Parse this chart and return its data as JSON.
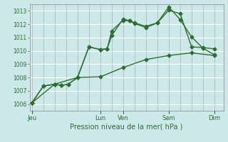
{
  "xlabel": "Pression niveau de la mer( hPa )",
  "bg_color": "#cce8e8",
  "plot_bg_color": "#cce8e8",
  "grid_color_v": "#d4a0a0",
  "grid_color_h": "#ffffff",
  "line_color": "#2d6e2d",
  "ylim": [
    1005.5,
    1013.5
  ],
  "yticks": [
    1006,
    1007,
    1008,
    1009,
    1010,
    1011,
    1012,
    1013
  ],
  "day_labels": [
    "Jeu",
    "Lun",
    "Ven",
    "Sam",
    "Dim"
  ],
  "day_positions": [
    0,
    3.0,
    4.0,
    6.0,
    8.0
  ],
  "xlim": [
    -0.1,
    8.4
  ],
  "line1_x": [
    0,
    0.5,
    1.0,
    1.3,
    1.6,
    2.0,
    2.5,
    3.0,
    3.3,
    3.5,
    4.0,
    4.3,
    4.5,
    5.0,
    5.5,
    6.0,
    6.5,
    7.0,
    7.5,
    8.0
  ],
  "line1_y": [
    1006.1,
    1007.35,
    1007.5,
    1007.4,
    1007.5,
    1008.0,
    1010.3,
    1010.1,
    1010.15,
    1011.5,
    1012.3,
    1012.25,
    1012.1,
    1011.85,
    1012.1,
    1013.05,
    1012.8,
    1010.3,
    1010.25,
    1010.15
  ],
  "line2_x": [
    0,
    0.5,
    1.0,
    1.3,
    1.6,
    2.0,
    2.5,
    3.0,
    3.3,
    3.5,
    4.0,
    4.3,
    4.5,
    5.0,
    5.5,
    6.0,
    6.5,
    7.0,
    7.5,
    8.0
  ],
  "line2_y": [
    1006.1,
    1007.35,
    1007.5,
    1007.4,
    1007.5,
    1008.0,
    1010.3,
    1010.1,
    1010.15,
    1011.15,
    1012.4,
    1012.25,
    1012.05,
    1011.75,
    1012.1,
    1013.3,
    1012.35,
    1011.05,
    1010.2,
    1009.7
  ],
  "line3_x": [
    0,
    1.0,
    2.0,
    3.0,
    4.0,
    5.0,
    6.0,
    7.0,
    8.0
  ],
  "line3_y": [
    1006.1,
    1007.5,
    1008.0,
    1008.05,
    1008.75,
    1009.35,
    1009.65,
    1009.85,
    1009.65
  ],
  "marker": "D",
  "markersize": 2.5,
  "linewidth": 1.0
}
